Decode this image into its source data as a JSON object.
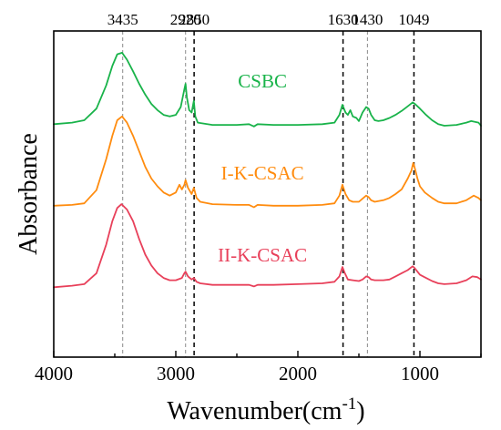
{
  "chart_data": {
    "type": "line",
    "xlabel": "Wavenumber(cm",
    "xlabel_sup": "-1",
    "xlabel_close": ")",
    "ylabel": "Absorbance",
    "xlim": [
      4000,
      500
    ],
    "x_reversed": true,
    "x_ticks": [
      4000,
      3000,
      2000,
      1000
    ],
    "y_ticks_shown": false,
    "grid": false,
    "legend": "none (inline series labels)",
    "peak_lines": [
      {
        "label": "3435",
        "x": 3435,
        "style": "thin-gray-dashed"
      },
      {
        "label": "2920",
        "x": 2920,
        "style": "thin-gray-dashed"
      },
      {
        "label": "2850",
        "x": 2850,
        "style": "black-dashed"
      },
      {
        "label": "1630",
        "x": 1630,
        "style": "black-dashed"
      },
      {
        "label": "1430",
        "x": 1430,
        "style": "thin-gray-dashed"
      },
      {
        "label": "1049",
        "x": 1049,
        "style": "black-dashed"
      }
    ],
    "series": [
      {
        "name": "CSBC",
        "color": "#19b34a",
        "label_at": [
          2290,
          2.57
        ],
        "points": [
          [
            4000,
            2.1
          ],
          [
            3850,
            2.12
          ],
          [
            3750,
            2.15
          ],
          [
            3650,
            2.3
          ],
          [
            3570,
            2.6
          ],
          [
            3520,
            2.85
          ],
          [
            3480,
            3.0
          ],
          [
            3440,
            3.02
          ],
          [
            3400,
            2.93
          ],
          [
            3350,
            2.78
          ],
          [
            3300,
            2.62
          ],
          [
            3250,
            2.48
          ],
          [
            3200,
            2.36
          ],
          [
            3150,
            2.28
          ],
          [
            3100,
            2.22
          ],
          [
            3050,
            2.2
          ],
          [
            3000,
            2.22
          ],
          [
            2960,
            2.32
          ],
          [
            2930,
            2.55
          ],
          [
            2920,
            2.62
          ],
          [
            2910,
            2.45
          ],
          [
            2890,
            2.28
          ],
          [
            2870,
            2.25
          ],
          [
            2852,
            2.4
          ],
          [
            2840,
            2.2
          ],
          [
            2820,
            2.12
          ],
          [
            2700,
            2.09
          ],
          [
            2500,
            2.09
          ],
          [
            2400,
            2.1
          ],
          [
            2360,
            2.07
          ],
          [
            2330,
            2.1
          ],
          [
            2200,
            2.09
          ],
          [
            2000,
            2.09
          ],
          [
            1800,
            2.1
          ],
          [
            1700,
            2.12
          ],
          [
            1660,
            2.22
          ],
          [
            1635,
            2.35
          ],
          [
            1610,
            2.25
          ],
          [
            1590,
            2.22
          ],
          [
            1570,
            2.28
          ],
          [
            1550,
            2.2
          ],
          [
            1520,
            2.18
          ],
          [
            1500,
            2.14
          ],
          [
            1470,
            2.25
          ],
          [
            1440,
            2.32
          ],
          [
            1420,
            2.3
          ],
          [
            1400,
            2.22
          ],
          [
            1370,
            2.15
          ],
          [
            1340,
            2.14
          ],
          [
            1300,
            2.15
          ],
          [
            1250,
            2.18
          ],
          [
            1200,
            2.22
          ],
          [
            1150,
            2.27
          ],
          [
            1100,
            2.33
          ],
          [
            1060,
            2.38
          ],
          [
            1040,
            2.36
          ],
          [
            1000,
            2.3
          ],
          [
            950,
            2.22
          ],
          [
            900,
            2.15
          ],
          [
            850,
            2.1
          ],
          [
            800,
            2.08
          ],
          [
            700,
            2.09
          ],
          [
            620,
            2.12
          ],
          [
            580,
            2.14
          ],
          [
            520,
            2.12
          ],
          [
            500,
            2.08
          ]
        ]
      },
      {
        "name": "I-K-CSAC",
        "color": "#ff8c0f",
        "label_at": [
          2290,
          1.39
        ],
        "points": [
          [
            4000,
            1.05
          ],
          [
            3850,
            1.06
          ],
          [
            3750,
            1.08
          ],
          [
            3650,
            1.25
          ],
          [
            3570,
            1.65
          ],
          [
            3520,
            1.95
          ],
          [
            3480,
            2.15
          ],
          [
            3440,
            2.2
          ],
          [
            3400,
            2.12
          ],
          [
            3350,
            1.95
          ],
          [
            3300,
            1.75
          ],
          [
            3250,
            1.55
          ],
          [
            3200,
            1.4
          ],
          [
            3150,
            1.3
          ],
          [
            3100,
            1.22
          ],
          [
            3050,
            1.18
          ],
          [
            3000,
            1.22
          ],
          [
            2970,
            1.32
          ],
          [
            2950,
            1.26
          ],
          [
            2930,
            1.32
          ],
          [
            2920,
            1.38
          ],
          [
            2900,
            1.28
          ],
          [
            2870,
            1.2
          ],
          [
            2852,
            1.28
          ],
          [
            2830,
            1.15
          ],
          [
            2800,
            1.1
          ],
          [
            2700,
            1.07
          ],
          [
            2500,
            1.06
          ],
          [
            2400,
            1.06
          ],
          [
            2360,
            1.03
          ],
          [
            2330,
            1.06
          ],
          [
            2200,
            1.05
          ],
          [
            2000,
            1.05
          ],
          [
            1800,
            1.06
          ],
          [
            1700,
            1.08
          ],
          [
            1660,
            1.18
          ],
          [
            1635,
            1.32
          ],
          [
            1610,
            1.2
          ],
          [
            1580,
            1.12
          ],
          [
            1550,
            1.1
          ],
          [
            1500,
            1.1
          ],
          [
            1470,
            1.14
          ],
          [
            1440,
            1.18
          ],
          [
            1420,
            1.16
          ],
          [
            1400,
            1.12
          ],
          [
            1370,
            1.1
          ],
          [
            1300,
            1.12
          ],
          [
            1250,
            1.15
          ],
          [
            1200,
            1.2
          ],
          [
            1150,
            1.26
          ],
          [
            1100,
            1.4
          ],
          [
            1070,
            1.5
          ],
          [
            1055,
            1.6
          ],
          [
            1045,
            1.55
          ],
          [
            1020,
            1.4
          ],
          [
            1000,
            1.3
          ],
          [
            960,
            1.22
          ],
          [
            900,
            1.15
          ],
          [
            850,
            1.1
          ],
          [
            800,
            1.08
          ],
          [
            700,
            1.08
          ],
          [
            620,
            1.12
          ],
          [
            560,
            1.18
          ],
          [
            520,
            1.15
          ],
          [
            500,
            1.12
          ]
        ]
      },
      {
        "name": "II-K-CSAC",
        "color": "#e8405a",
        "label_at": [
          2290,
          0.33
        ],
        "points": [
          [
            4000,
            0.0
          ],
          [
            3850,
            0.02
          ],
          [
            3750,
            0.04
          ],
          [
            3650,
            0.18
          ],
          [
            3570,
            0.55
          ],
          [
            3520,
            0.85
          ],
          [
            3480,
            1.02
          ],
          [
            3445,
            1.07
          ],
          [
            3400,
            1.0
          ],
          [
            3350,
            0.85
          ],
          [
            3300,
            0.62
          ],
          [
            3250,
            0.42
          ],
          [
            3200,
            0.28
          ],
          [
            3150,
            0.18
          ],
          [
            3100,
            0.12
          ],
          [
            3050,
            0.09
          ],
          [
            3000,
            0.09
          ],
          [
            2950,
            0.12
          ],
          [
            2930,
            0.18
          ],
          [
            2920,
            0.2
          ],
          [
            2900,
            0.14
          ],
          [
            2870,
            0.1
          ],
          [
            2852,
            0.12
          ],
          [
            2830,
            0.07
          ],
          [
            2800,
            0.05
          ],
          [
            2700,
            0.03
          ],
          [
            2500,
            0.03
          ],
          [
            2400,
            0.03
          ],
          [
            2360,
            0.01
          ],
          [
            2330,
            0.03
          ],
          [
            2200,
            0.03
          ],
          [
            2000,
            0.04
          ],
          [
            1800,
            0.05
          ],
          [
            1700,
            0.07
          ],
          [
            1660,
            0.14
          ],
          [
            1635,
            0.26
          ],
          [
            1615,
            0.18
          ],
          [
            1590,
            0.1
          ],
          [
            1550,
            0.09
          ],
          [
            1500,
            0.08
          ],
          [
            1470,
            0.1
          ],
          [
            1440,
            0.14
          ],
          [
            1420,
            0.13
          ],
          [
            1400,
            0.1
          ],
          [
            1370,
            0.09
          ],
          [
            1300,
            0.09
          ],
          [
            1250,
            0.1
          ],
          [
            1200,
            0.14
          ],
          [
            1150,
            0.18
          ],
          [
            1100,
            0.22
          ],
          [
            1060,
            0.27
          ],
          [
            1045,
            0.25
          ],
          [
            1020,
            0.2
          ],
          [
            1000,
            0.16
          ],
          [
            950,
            0.12
          ],
          [
            900,
            0.08
          ],
          [
            850,
            0.05
          ],
          [
            800,
            0.04
          ],
          [
            700,
            0.05
          ],
          [
            620,
            0.09
          ],
          [
            570,
            0.14
          ],
          [
            530,
            0.13
          ],
          [
            500,
            0.1
          ]
        ]
      }
    ]
  }
}
